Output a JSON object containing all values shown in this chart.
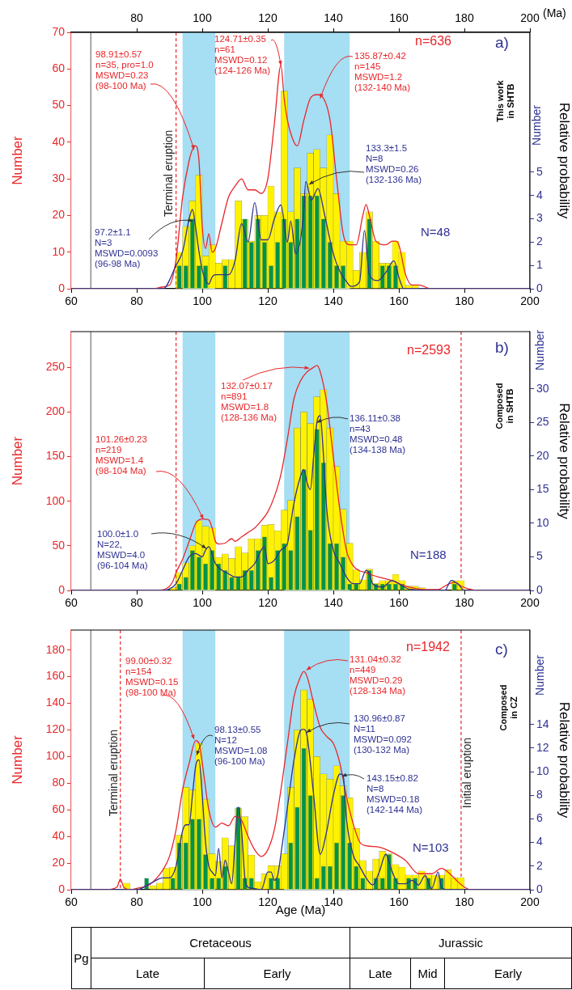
{
  "chart_data": [
    {
      "type": "histogram",
      "ylabel": "Number",
      "y2label": "Relative probability",
      "x2label": "(Ma)",
      "bins": [
        92,
        94,
        96,
        98,
        100,
        102,
        104,
        106,
        108,
        110,
        112,
        114,
        116,
        118,
        120,
        122,
        124,
        126,
        128,
        130,
        132,
        134,
        136,
        138,
        140,
        142,
        144,
        146,
        148,
        150,
        152,
        154,
        156,
        158,
        160,
        162,
        164,
        166
      ],
      "series": [
        {
          "color": "#fff200",
          "values": [
            10,
            17,
            24,
            31,
            9,
            12,
            7,
            8,
            8,
            24,
            19,
            13,
            20,
            20,
            28,
            21,
            54,
            21,
            33,
            26,
            37,
            38,
            33,
            42,
            26,
            13,
            13,
            5,
            10,
            21,
            13,
            7,
            7,
            13,
            10,
            1,
            1
          ]
        },
        {
          "color": "#00934a",
          "axis": "y2",
          "values": [
            1,
            1,
            3,
            1,
            1,
            0,
            0,
            1,
            0,
            0,
            3,
            2,
            3,
            2,
            1,
            2,
            3,
            2,
            3,
            4,
            4,
            4,
            3,
            2,
            1,
            1,
            0,
            0,
            0,
            3,
            0,
            1,
            1,
            1,
            0,
            0,
            0
          ]
        },
        {
          "type": "line",
          "color": "#e8262a",
          "x": [
            60,
            85,
            88,
            90,
            92,
            94,
            96,
            97,
            98,
            99,
            100,
            101,
            102,
            103,
            104,
            106,
            108,
            110,
            112,
            114,
            116,
            118,
            120,
            122,
            124,
            125,
            126,
            128,
            129,
            131,
            133,
            135,
            137,
            139,
            141,
            143,
            145,
            147,
            149,
            150,
            151,
            153,
            156,
            158,
            159,
            160,
            162,
            164,
            166,
            170,
            200
          ],
          "values": [
            0,
            0,
            0.5,
            1,
            8,
            25,
            35,
            38,
            39,
            35,
            17,
            11,
            15,
            10,
            11,
            18,
            25,
            28,
            30,
            27,
            27,
            26,
            30,
            45,
            61,
            52,
            46,
            40,
            39,
            46,
            52,
            53,
            52,
            46,
            30,
            15,
            12,
            12,
            20,
            23,
            20,
            13,
            12,
            13,
            13,
            12,
            4,
            1,
            1,
            0,
            0
          ]
        },
        {
          "type": "line",
          "color": "#2e3192",
          "axis": "y2",
          "x": [
            60,
            88,
            92,
            94,
            96,
            97,
            98,
            99,
            100,
            102,
            103,
            104,
            106,
            108,
            110,
            112,
            114,
            116,
            118,
            120,
            122,
            124,
            126,
            127,
            128.5,
            130.8,
            131.6,
            133.3,
            135.3,
            137.3,
            139.8,
            141.8,
            143.8,
            145.4,
            148,
            149.5,
            151,
            153.5,
            156,
            158.5,
            160,
            161.5,
            200
          ],
          "values": [
            0,
            0,
            1,
            1.6,
            3,
            3.4,
            2.6,
            1.6,
            0.8,
            0.2,
            0.5,
            0.6,
            0.6,
            0.6,
            1.2,
            2.8,
            2,
            3.7,
            2.1,
            2.1,
            3,
            3.6,
            2,
            2.9,
            1.5,
            3,
            4.6,
            3.8,
            4.3,
            3.2,
            1.6,
            0.8,
            0.35,
            0.1,
            0.3,
            2.5,
            0.6,
            0.35,
            0.7,
            1.2,
            0.5,
            0,
            0
          ]
        }
      ],
      "xlim": [
        60,
        200
      ],
      "xticks": [
        60,
        80,
        100,
        120,
        140,
        160,
        180,
        200
      ],
      "x2lim": [
        60,
        200
      ],
      "x2ticks": [
        80,
        100,
        120,
        140,
        160,
        180,
        200
      ],
      "ylim": [
        0,
        70
      ],
      "yticks": [
        0,
        10,
        20,
        30,
        40,
        50,
        60,
        70
      ],
      "y2lim": [
        0,
        11
      ],
      "y2ticks": [
        0,
        1,
        2,
        3,
        4,
        5
      ],
      "bands": [
        {
          "axis": "x",
          "from": 94,
          "to": 104,
          "color": "#a6def3"
        },
        {
          "axis": "x",
          "from": 125,
          "to": 145,
          "color": "#a6def3"
        }
      ],
      "ref_lines": [
        {
          "axis": "x",
          "value": 66,
          "color": "#8c8c8c",
          "line_style": "solid"
        },
        {
          "axis": "x",
          "value": 92,
          "label": "Terminal eruption",
          "color": "#e8262a",
          "line_style": "dashed"
        }
      ],
      "annotations": [
        {
          "text": "98.91±0.57\nn=35, pro=1.0\nMSWD=0.23\n(98-100 Ma)",
          "x": 97.5,
          "y": 38
        },
        {
          "text": "124.71±0.35\nn=61\nMSWD=0.12\n(124-126 Ma)",
          "x": 124,
          "y": 61
        },
        {
          "text": "135.87±0.42\nn=145\nMSWD=1.2\n(132-140 Ma)",
          "x": 136,
          "y": 52
        },
        {
          "text": "97.2±1.1\nN=3\nMSWD=0.0093\n(96-98 Ma)",
          "x": 97,
          "y": 18.5
        },
        {
          "text": "133.3±1.5\nN=8\nMSWD=0.26\n(132-136 Ma)",
          "x": 132.6,
          "y": 28.5
        },
        "n=636",
        "N=48",
        "a)",
        "This work\nin SHTB",
        "Number"
      ]
    },
    {
      "type": "histogram",
      "ylabel": "Number",
      "y2label": "Relative probability",
      "bins": [
        90,
        92,
        94,
        96,
        98,
        100,
        102,
        104,
        106,
        108,
        110,
        112,
        114,
        116,
        118,
        120,
        122,
        124,
        126,
        128,
        130,
        132,
        134,
        136,
        138,
        140,
        142,
        144,
        146,
        148,
        150,
        152,
        154,
        156,
        158,
        160,
        162,
        164,
        166,
        168,
        170,
        172,
        174,
        176,
        178,
        180
      ],
      "series": [
        {
          "color": "#fff200",
          "values": [
            3,
            20,
            31,
            50,
            78,
            72,
            70,
            37,
            41,
            36,
            49,
            42,
            58,
            58,
            73,
            74,
            67,
            90,
            101,
            182,
            200,
            187,
            217,
            225,
            182,
            139,
            91,
            53,
            23,
            12,
            24,
            8,
            11,
            11,
            18,
            11,
            5,
            5,
            3,
            0,
            0,
            0,
            0,
            11,
            11
          ]
        },
        {
          "color": "#00934a",
          "axis": "y2",
          "values": [
            0,
            1,
            2,
            6,
            5,
            4,
            6,
            4,
            3,
            2,
            2,
            3,
            3,
            6,
            8,
            2,
            6,
            7,
            6,
            11,
            18,
            9,
            24,
            19,
            7,
            7,
            5,
            1,
            1,
            0,
            3,
            1,
            1,
            1,
            1,
            1,
            0,
            0,
            0,
            0,
            0,
            0,
            0,
            1,
            0
          ]
        },
        {
          "type": "line",
          "color": "#e8262a",
          "x": [
            60,
            86,
            89,
            91,
            92,
            94,
            96,
            98,
            100,
            102,
            103,
            104,
            105,
            107,
            109,
            110,
            112,
            114,
            116,
            118,
            120,
            122,
            124,
            126,
            128,
            130,
            132,
            134,
            135,
            136,
            138,
            140,
            142,
            144,
            146,
            148,
            150,
            152,
            155,
            158,
            161,
            164,
            168,
            172,
            175,
            177,
            179,
            181,
            185,
            200
          ],
          "values": [
            0,
            0,
            2,
            10,
            20,
            35,
            55,
            75,
            80,
            79,
            70,
            55,
            52,
            53,
            58,
            55,
            60,
            65,
            70,
            78,
            88,
            105,
            130,
            170,
            215,
            235,
            245,
            250,
            252,
            245,
            210,
            150,
            90,
            45,
            28,
            22,
            20,
            17,
            14,
            11,
            6,
            3,
            1,
            1,
            7,
            9,
            5,
            2,
            0,
            0
          ]
        },
        {
          "type": "line",
          "color": "#2e3192",
          "axis": "y2",
          "x": [
            60,
            88,
            92,
            94,
            96,
            98,
            100,
            101,
            102,
            104,
            106,
            108,
            110,
            112,
            114,
            116,
            118,
            119,
            120,
            122,
            124,
            126,
            127,
            128,
            130,
            131,
            132,
            133,
            134,
            135,
            136,
            137,
            138,
            140,
            142,
            144,
            146,
            148,
            150,
            151,
            152,
            155,
            158,
            160,
            163,
            170,
            174,
            176,
            178,
            180,
            200
          ],
          "values": [
            0,
            0,
            1,
            3,
            5,
            5.5,
            5,
            6,
            6.5,
            4,
            3,
            2.5,
            2,
            2,
            3,
            4,
            6,
            6.5,
            4,
            4.5,
            6,
            7,
            10,
            13,
            17,
            18,
            16,
            15,
            20,
            25,
            26,
            20,
            12,
            6,
            4,
            2,
            1,
            1,
            3,
            2.5,
            1,
            0.5,
            1.5,
            1,
            0.2,
            0,
            0,
            1.5,
            1,
            0,
            0
          ]
        }
      ],
      "xlim": [
        60,
        200
      ],
      "xticks": [
        60,
        80,
        100,
        120,
        140,
        160,
        180,
        200
      ],
      "ylim": [
        0,
        290
      ],
      "yticks": [
        0,
        50,
        100,
        150,
        200,
        250
      ],
      "y2lim": [
        0,
        38.5
      ],
      "y2ticks": [
        0,
        5,
        10,
        15,
        20,
        25,
        30
      ],
      "bands": [
        {
          "axis": "x",
          "from": 94,
          "to": 104,
          "color": "#a6def3"
        },
        {
          "axis": "x",
          "from": 125,
          "to": 145,
          "color": "#a6def3"
        }
      ],
      "ref_lines": [
        {
          "axis": "x",
          "value": 66,
          "color": "#8c8c8c",
          "line_style": "solid"
        },
        {
          "axis": "x",
          "value": 92,
          "color": "#e8262a",
          "line_style": "dashed"
        },
        {
          "axis": "x",
          "value": 179,
          "color": "#e8262a",
          "line_style": "dashed"
        }
      ],
      "annotations": [
        {
          "text": "101.26±0.23\nn=219\nMSWD=1.4\n(98-104 Ma)",
          "x": 100.3,
          "y": 80
        },
        {
          "text": "132.07±0.17\nn=891\nMSWD=1.8\n(128-136 Ma)",
          "x": 132.6,
          "y": 249
        },
        {
          "text": "100.0±1.0\nN=22,\nMSWD=4.0\n(96-104 Ma)",
          "x": 101.2,
          "y": 47
        },
        {
          "text": "136.11±0.38\nn=43\nMSWD=0.48\n(134-138 Ma)",
          "x": 135,
          "y": 188
        },
        "n=2593",
        "b)",
        "N=188",
        "Composed\nin SHTB",
        "Number"
      ]
    },
    {
      "type": "histogram",
      "ylabel": "Number",
      "y2label": "Relative probability",
      "xlabel": "Age (Ma)",
      "bins": [
        76,
        78,
        80,
        82,
        84,
        86,
        88,
        90,
        92,
        94,
        96,
        98,
        100,
        102,
        104,
        106,
        108,
        110,
        112,
        114,
        116,
        118,
        120,
        122,
        124,
        126,
        128,
        130,
        132,
        134,
        136,
        138,
        140,
        142,
        144,
        146,
        148,
        150,
        152,
        154,
        156,
        158,
        160,
        162,
        164,
        166,
        168,
        170,
        172,
        174,
        176,
        178,
        180
      ],
      "series": [
        {
          "color": "#fff200",
          "values": [
            5,
            0,
            0,
            null,
            3,
            5,
            16,
            17,
            41,
            77,
            75,
            110,
            68,
            27,
            21,
            39,
            33,
            61,
            55,
            26,
            6,
            12,
            18,
            18,
            27,
            77,
            120,
            150,
            143,
            100,
            87,
            83,
            93,
            78,
            69,
            46,
            22,
            14,
            23,
            29,
            27,
            19,
            17,
            11,
            11,
            14,
            11,
            11,
            11,
            15,
            9,
            9
          ]
        },
        {
          "color": "#00934a",
          "axis": "y2",
          "values": [
            0,
            0,
            0,
            1,
            0,
            0,
            0,
            1,
            4,
            4,
            6,
            6,
            3,
            1,
            1,
            2,
            0,
            7,
            1,
            1,
            0,
            0,
            1,
            1,
            0,
            4,
            7,
            12,
            8,
            1,
            2,
            2,
            4,
            8,
            4,
            2,
            1,
            0,
            1,
            1,
            3,
            1,
            0,
            1,
            1,
            0,
            1,
            0,
            1,
            0,
            0,
            0
          ]
        },
        {
          "type": "line",
          "color": "#e8262a",
          "x": [
            60,
            70,
            74,
            75,
            76,
            78,
            80,
            84,
            88,
            90,
            92,
            94,
            96,
            98,
            99,
            100,
            102,
            104,
            106,
            108,
            110,
            112,
            114,
            116,
            118,
            120,
            122,
            124,
            126,
            128,
            130,
            131,
            132,
            134,
            136,
            138,
            140,
            142,
            144,
            146,
            148,
            150,
            154,
            158,
            162,
            166,
            170,
            173,
            176,
            178,
            180,
            182,
            200
          ],
          "values": [
            0,
            0,
            2,
            8,
            2,
            0,
            1,
            4,
            15,
            25,
            45,
            75,
            95,
            112,
            110,
            95,
            60,
            47,
            50,
            48,
            55,
            52,
            40,
            30,
            25,
            30,
            45,
            75,
            110,
            145,
            160,
            164,
            160,
            140,
            122,
            115,
            110,
            95,
            70,
            50,
            36,
            33,
            32,
            28,
            22,
            12,
            12,
            16,
            11,
            6,
            2,
            0,
            0
          ]
        },
        {
          "type": "line",
          "color": "#2e3192",
          "axis": "y2",
          "x": [
            60,
            80,
            84,
            88,
            90,
            92,
            94,
            95,
            96,
            97,
            98,
            99,
            100,
            101,
            102,
            103,
            104,
            105,
            106,
            107,
            108,
            109,
            110,
            111,
            112,
            113,
            114,
            116,
            118,
            120,
            121,
            122,
            123,
            124,
            126,
            128,
            130,
            131,
            132,
            134,
            136,
            138,
            140,
            142,
            143,
            144,
            146,
            148,
            150,
            152,
            154,
            156,
            158,
            160,
            162,
            164,
            166,
            168,
            170,
            172,
            173,
            175,
            200
          ],
          "values": [
            0,
            0,
            0.5,
            1,
            1,
            2,
            5,
            5.5,
            5.5,
            8,
            10.5,
            11,
            8,
            4,
            2,
            1.5,
            1.2,
            3.5,
            1,
            2.5,
            1.5,
            0.5,
            4,
            7,
            5,
            1,
            0.2,
            0.1,
            0,
            1.5,
            1.5,
            0.8,
            1.2,
            3,
            7,
            11,
            13.5,
            13.6,
            13,
            8,
            3,
            5,
            8,
            9.8,
            9.7,
            6,
            3,
            2,
            1,
            0.4,
            1.5,
            3,
            1.5,
            0.5,
            0.5,
            0.8,
            0.4,
            1.2,
            0.1,
            1.5,
            0.2,
            0,
            0
          ]
        }
      ],
      "xlim": [
        60,
        200
      ],
      "xticks": [
        60,
        80,
        100,
        120,
        140,
        160,
        180,
        200
      ],
      "ylim": [
        0,
        195
      ],
      "yticks": [
        0,
        20,
        40,
        60,
        80,
        100,
        120,
        140,
        160,
        180
      ],
      "y2lim": [
        0,
        22
      ],
      "y2ticks": [
        0,
        2,
        4,
        6,
        8,
        10,
        12,
        14
      ],
      "bands": [
        {
          "axis": "x",
          "from": 94,
          "to": 104,
          "color": "#a6def3"
        },
        {
          "axis": "x",
          "from": 125,
          "to": 145,
          "color": "#a6def3"
        }
      ],
      "ref_lines": [
        {
          "axis": "x",
          "value": 66,
          "color": "#8c8c8c",
          "line_style": "solid"
        },
        {
          "axis": "x",
          "value": 75,
          "label": "Terminal eruption",
          "color": "#e8262a",
          "line_style": "dashed"
        },
        {
          "axis": "x",
          "value": 179,
          "label": "Initial eruption",
          "color": "#e8262a",
          "line_style": "dashed"
        }
      ],
      "annotations": [
        {
          "text": "99.00±0.32\nn=154\nMSWD=0.15\n(98-100 Ma)",
          "x": 97.5,
          "y": 113
        },
        {
          "text": "98.13±0.55\nN=12\nMSWD=1.08\n(96-100 Ma)",
          "x": 98.3,
          "y": 101
        },
        {
          "text": "131.04±0.32\nn=449\nMSWD=0.29\n(128-134 Ma)",
          "x": 131.8,
          "y": 165
        },
        {
          "text": "130.96±0.87\nN=11\nMSWD=0.092\n(130-132 Ma)",
          "x": 131.8,
          "y": 118
        },
        {
          "text": "143.15±0.82\nN=8\nMSWD=0.18\n(142-144 Ma)",
          "x": 142.7,
          "y": 85
        },
        "n=1942",
        "c)",
        "N=103",
        "Composed\nin CZ",
        "Number"
      ]
    },
    {
      "type": "other",
      "annotations": [
        "Pg",
        "Cretaceous",
        "Jurassic",
        "Late",
        "Early",
        "Late",
        "Mid",
        "Early"
      ]
    }
  ]
}
